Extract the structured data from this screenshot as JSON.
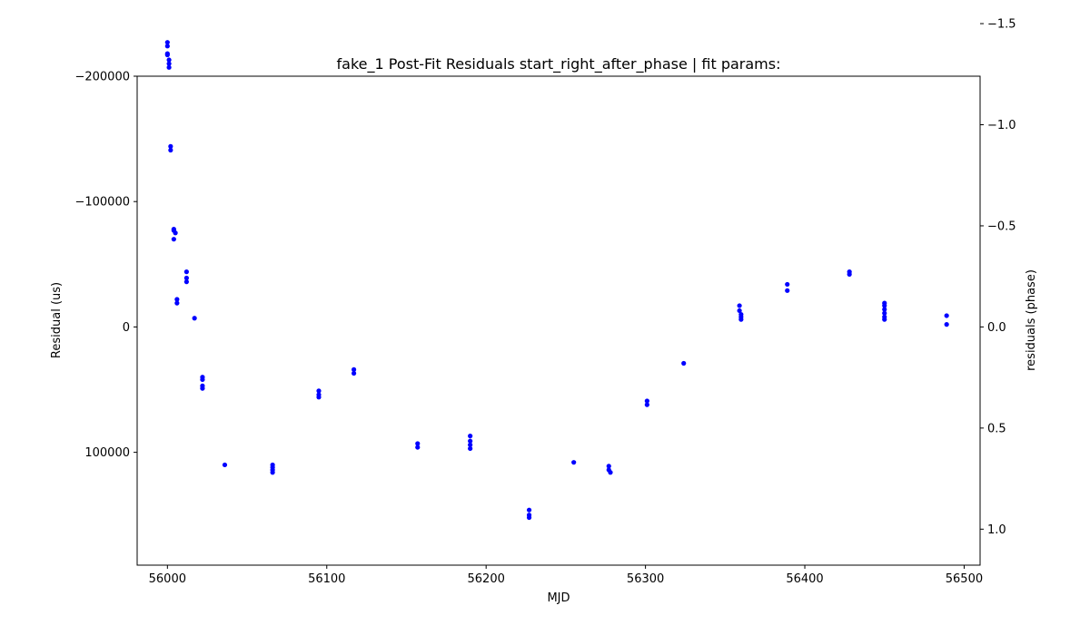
{
  "chart_data": {
    "type": "scatter",
    "title": "fake_1 Post-Fit Residuals start_right_after_phase | fit params:",
    "xlabel": "MJD",
    "ylabel": "Residual (us)",
    "ylabel_right": "residuals (phase)",
    "xlim": [
      55981,
      56510
    ],
    "ylim": [
      -200000,
      190000
    ],
    "ylim_right": [
      -1.0,
      1.0
    ],
    "y_inverted": true,
    "x_ticks": [
      56000,
      56100,
      56200,
      56300,
      56400,
      56500
    ],
    "x_tick_labels": [
      "56000",
      "56100",
      "56200",
      "56300",
      "56400",
      "56500"
    ],
    "y_ticks": [
      -200000,
      -100000,
      0,
      100000
    ],
    "y_tick_labels": [
      "−200000",
      "−100000",
      "0",
      "100000"
    ],
    "y_right_ticks": [
      -1.5,
      -1.0,
      -0.5,
      0.0,
      0.5,
      1.0
    ],
    "y_right_tick_labels": [
      "−1.5",
      "−1.0",
      "−0.5",
      "0.0",
      "0.5",
      "1.0"
    ],
    "marker_color": "#0000ff",
    "series": [
      {
        "name": "residuals",
        "x": [
          56000,
          56000,
          56000,
          56000,
          56001,
          56001,
          56001,
          56002,
          56002,
          56004,
          56004,
          56005,
          56004,
          56006,
          56006,
          56012,
          56012,
          56012,
          56017,
          56022,
          56022,
          56022,
          56022,
          56036,
          56066,
          56066,
          56066,
          56066,
          56095,
          56095,
          56095,
          56117,
          56117,
          56157,
          56157,
          56190,
          56190,
          56190,
          56190,
          56227,
          56227,
          56227,
          56255,
          56277,
          56277,
          56278,
          56301,
          56301,
          56324,
          56359,
          56359,
          56360,
          56360,
          56360,
          56389,
          56389,
          56428,
          56428,
          56450,
          56450,
          56450,
          56450,
          56450,
          56450,
          56489,
          56489
        ],
        "y": [
          -227000,
          -224000,
          -218000,
          -217000,
          -213000,
          -210000,
          -207000,
          -144000,
          -141000,
          -78000,
          -77000,
          -75000,
          -70000,
          -22000,
          -19000,
          -44000,
          -39000,
          -36000,
          -7000,
          40000,
          42000,
          47000,
          49000,
          110000,
          110000,
          112000,
          114000,
          116000,
          51000,
          54000,
          56000,
          34000,
          37000,
          93000,
          96000,
          87000,
          91000,
          94000,
          97000,
          146000,
          150000,
          152000,
          108000,
          111000,
          114000,
          116000,
          59000,
          62000,
          29000,
          -17000,
          -13000,
          -10000,
          -8000,
          -6000,
          -34000,
          -29000,
          -44000,
          -42000,
          -19000,
          -17000,
          -14000,
          -11000,
          -8000,
          -6000,
          -9000,
          -2000
        ]
      }
    ]
  }
}
